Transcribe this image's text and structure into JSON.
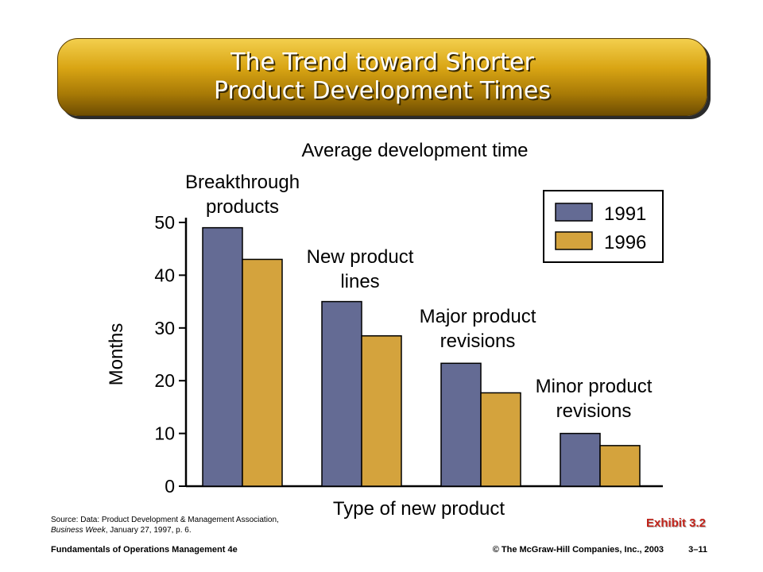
{
  "slide": {
    "title_line1": "The Trend toward Shorter",
    "title_line2": "Product Development Times"
  },
  "chart_data": {
    "type": "bar",
    "title": "Average development time",
    "xlabel": "Type of new product",
    "ylabel": "Months",
    "ylim": [
      0,
      50
    ],
    "yticks": [
      0,
      10,
      20,
      30,
      40,
      50
    ],
    "categories": [
      "Breakthrough products",
      "New product lines",
      "Major product revisions",
      "Minor product revisions"
    ],
    "category_labels": [
      [
        "Breakthrough",
        "products"
      ],
      [
        "New product",
        "lines"
      ],
      [
        "Major product",
        "revisions"
      ],
      [
        "Minor product",
        "revisions"
      ]
    ],
    "series": [
      {
        "name": "1991",
        "color": "#646b94",
        "values": [
          49,
          35,
          23.3,
          10
        ]
      },
      {
        "name": "1996",
        "color": "#d4a33d",
        "values": [
          43,
          28.5,
          17.7,
          7.7
        ]
      }
    ],
    "legend_position": "top-right",
    "grid": false
  },
  "source": {
    "prefix": "Source: Data: Product Development & Management Association, ",
    "publication": "Business Week",
    "suffix": ", January 27, 1997, p. 6."
  },
  "exhibit_label": "Exhibit 3.2",
  "footer": {
    "book": "Fundamentals of Operations Management 4e",
    "copyright": "© The McGraw-Hill Companies, Inc., 2003",
    "page": "3–11"
  }
}
